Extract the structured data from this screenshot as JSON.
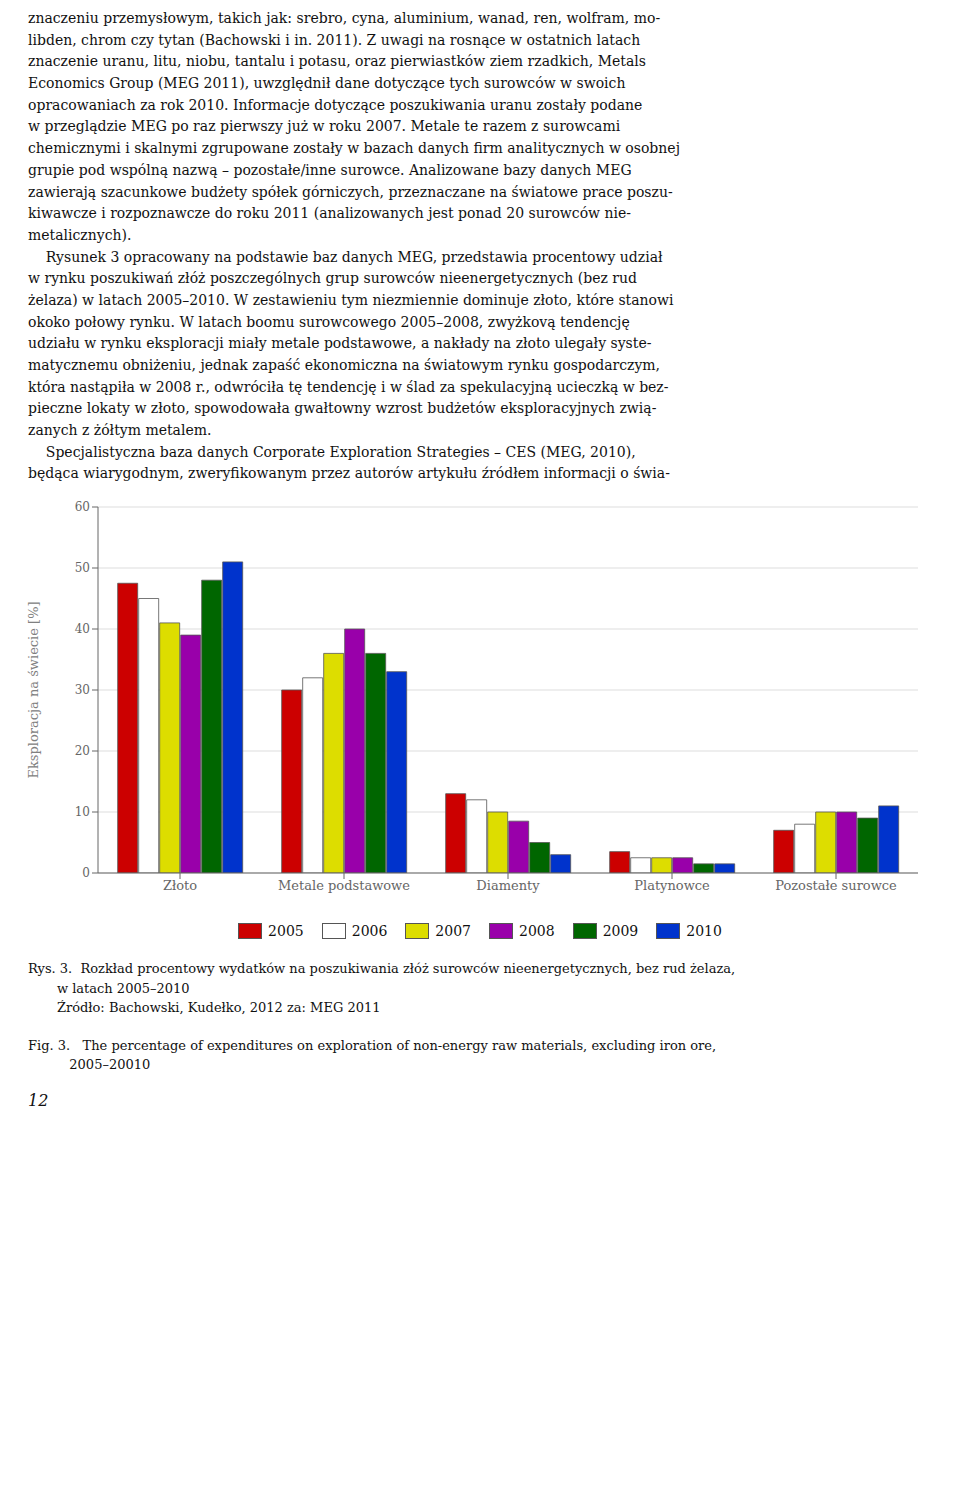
{
  "chart_data": {
    "type": "bar",
    "categories": [
      "Złoto",
      "Metale podstawowe",
      "Diamenty",
      "Platynowce",
      "Pozostałe surowce"
    ],
    "series": [
      {
        "name": "2005",
        "color": "#cc0000",
        "values": [
          47.5,
          30.0,
          13.0,
          3.5,
          7.0
        ]
      },
      {
        "name": "2006",
        "color": "#ffffff",
        "values": [
          45.0,
          32.0,
          12.0,
          2.5,
          8.0
        ]
      },
      {
        "name": "2007",
        "color": "#dddd00",
        "values": [
          41.0,
          36.0,
          10.0,
          2.5,
          10.0
        ]
      },
      {
        "name": "2008",
        "color": "#9900aa",
        "values": [
          39.0,
          40.0,
          8.5,
          2.5,
          10.0
        ]
      },
      {
        "name": "2009",
        "color": "#006600",
        "values": [
          48.0,
          36.0,
          5.0,
          1.5,
          9.0
        ]
      },
      {
        "name": "2010",
        "color": "#0033cc",
        "values": [
          51.0,
          33.0,
          3.0,
          1.5,
          11.0
        ]
      }
    ],
    "ylabel": "Eksploracja na świecie [%]",
    "ylim": [
      0,
      60
    ],
    "yticks": [
      0,
      10,
      20,
      30,
      40,
      50,
      60
    ],
    "grid": true,
    "legend": "bottom",
    "annotations": [
      "znaczeniu przemysłowym, takich jak: srebro, cyna, aluminium, wanad, ren, wolfram, mo-\nlibden, chrom czy tytan (Bachowski i in. 2011). Z uwagi na rosnące w ostatnich latach\nznaczenie uranu, litu, niobu, tantalu i potasu, oraz pierwiastków ziem rzadkich, Metals\nEconomics Group (MEG 2011), uwzględnił dane dotyczące tych surowców w swoich\nopracowaniach za rok 2010. Informacje dotyczące poszukiwania uranu zostały podane\nw przeglądzie MEG po raz pierwszy już w roku 2007. Metale te razem z surowcami\nchemicznymi i skalnymi zgrupowane zostały w bazach danych firm analitycznych w osobnej\ngrupie pod wspólną nazwą – pozostałe/inne surowce. Analizowane bazy danych MEG\nzawierają szacunkowe budżety spółek górniczych, przeznaczane na światowe prace poszu-\nkiwawcze i rozpoznawcze do roku 2011 (analizowanych jest ponad 20 surowców nie-\nmetalicznych).",
      "    Rysunek 3 opracowany na podstawie baz danych MEG, przedstawia procentowy udział\nw rynku poszukiwań złóż poszczególnych grup surowców nieenergetycznych (bez rud\nżelaza) w latach 2005–2010. W zestawieniu tym niezmiennie dominuje złoto, które stanowi\nokoko połowy rynku. W latach boomu surowcowego 2005–2008, zwyżkovą tendencję\nudziału w rynku eksploracji miały metale podstawowe, a nakłady na złoto ulegały syste-\nmatycznemu obniżeniu, jednak zapaść ekonomiczna na światowym rynku gospodarczym,\nktóra nastąpiła w 2008 r., odwróciła tę tendencję i w ślad za spekulacyjną ucieczką w bez-\npieczne lokaty w złoto, spowodowała gwałtowny wzrost budżetów eksploracyjnych zwią-\nzanych z żółtym metalem.",
      "    Specjalistyczna baza danych Corporate Exploration Strategies – CES (MEG, 2010),\nbędąca wiarygodnym, zweryfikowanym przez autorów artykułu źródłem informacji o świa-",
      "Rys. 3.  Rozkład procentowy wydatków na poszukiwania złóż surowców nieenergetycznych, bez rud żelaza,",
      "       w latach 2005–2010",
      "       Źródło: Bachowski, Kudełko, 2012 za: MEG 2011",
      "Fig. 3.   The percentage of expenditures on exploration of non-energy raw materials, excluding iron ore,",
      "          2005–20010",
      "12"
    ]
  }
}
